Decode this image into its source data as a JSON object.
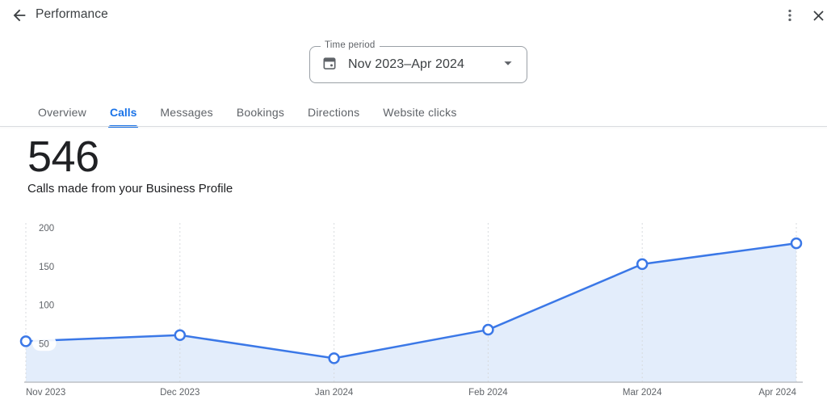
{
  "header": {
    "title": "Performance",
    "icons": {
      "back": "arrow-left",
      "overflow": "three-dots-vertical",
      "close": "x"
    }
  },
  "time_period": {
    "label": "Time period",
    "value": "Nov 2023–Apr 2024",
    "icons": {
      "leading": "calendar",
      "trailing": "caret-down"
    }
  },
  "tabs": [
    {
      "label": "Overview",
      "active": false
    },
    {
      "label": "Calls",
      "active": true
    },
    {
      "label": "Messages",
      "active": false
    },
    {
      "label": "Bookings",
      "active": false
    },
    {
      "label": "Directions",
      "active": false
    },
    {
      "label": "Website clicks",
      "active": false
    }
  ],
  "metric": {
    "value": "546",
    "description": "Calls made from your Business Profile"
  },
  "chart_data": {
    "type": "area",
    "title": "Calls made from your Business Profile",
    "x": [
      "Nov 2023",
      "Dec 2023",
      "Jan 2024",
      "Feb 2024",
      "Mar 2024",
      "Apr 2024"
    ],
    "series": [
      {
        "name": "Calls",
        "values": [
          53,
          61,
          31,
          68,
          153,
          180
        ]
      }
    ],
    "ylim": [
      0,
      200
    ],
    "yticks": [
      50,
      100,
      150,
      200
    ],
    "xlabel": "",
    "ylabel": "",
    "grid": "vertical-dashed",
    "legend": "none",
    "colors": {
      "line": "#3b78e7",
      "area": "#e3edfb",
      "marker_fill": "#ffffff",
      "axis_text": "#5f6368",
      "gridline": "#d7dade",
      "baseline": "#bdc1c6",
      "accent": "#1a73e8"
    }
  }
}
